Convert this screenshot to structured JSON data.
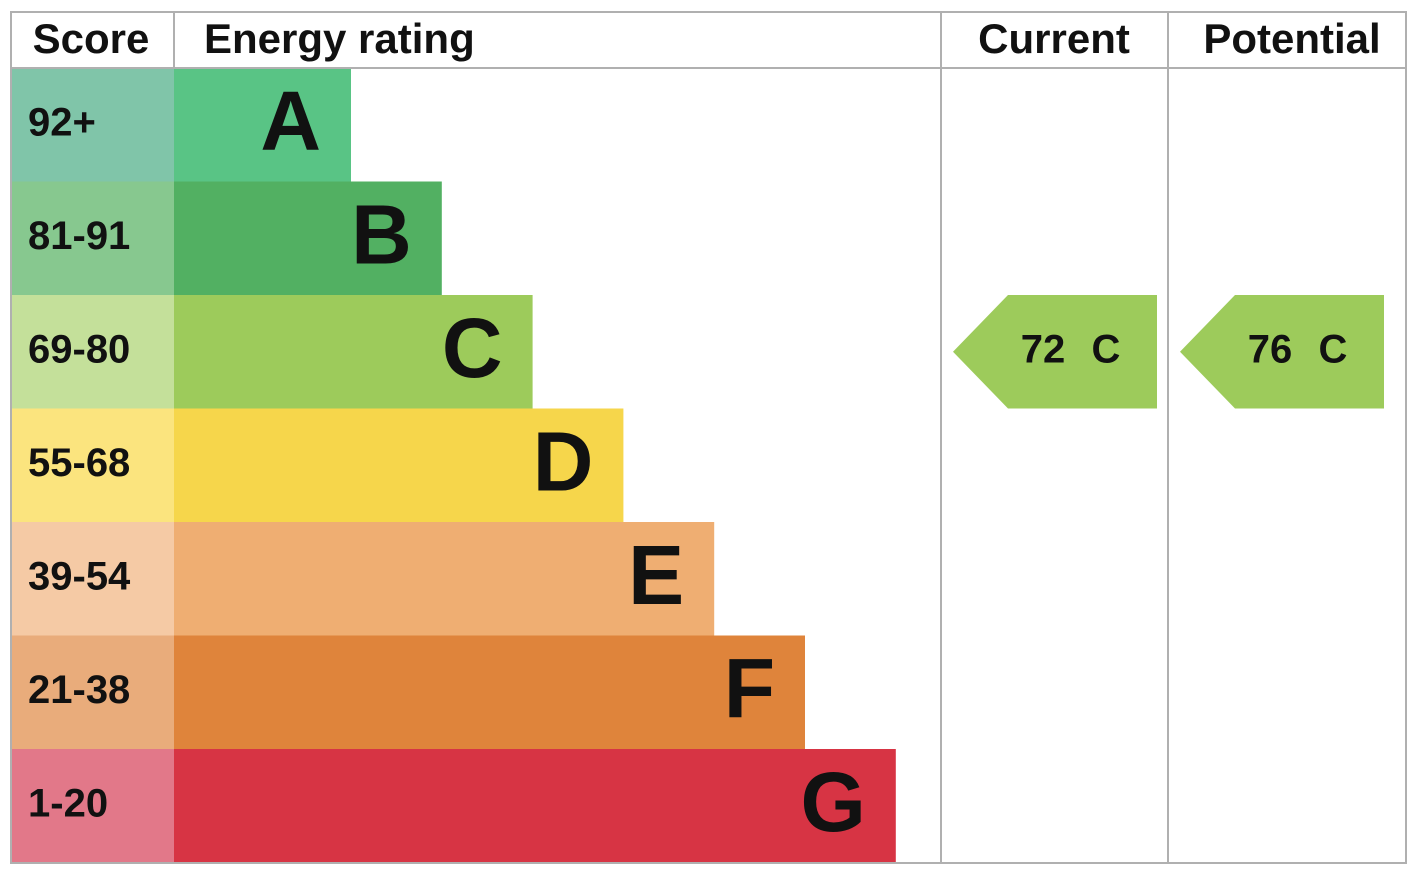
{
  "header": {
    "score": "Score",
    "energy_rating": "Energy rating",
    "current": "Current",
    "potential": "Potential"
  },
  "rows": [
    {
      "score": "92+",
      "rating": "A",
      "color": "#59c485",
      "score_color": "#80c5a9"
    },
    {
      "score": "81-91",
      "rating": "B",
      "color": "#52b062",
      "score_color": "#87c88f"
    },
    {
      "score": "69-80",
      "rating": "C",
      "color": "#9dcb5b",
      "score_color": "#c4e09a"
    },
    {
      "score": "55-68",
      "rating": "D",
      "color": "#f6d64b",
      "score_color": "#fbe47e"
    },
    {
      "score": "39-54",
      "rating": "E",
      "color": "#efae72",
      "score_color": "#f5caa5"
    },
    {
      "score": "21-38",
      "rating": "F",
      "color": "#df843b",
      "score_color": "#e9ac7b"
    },
    {
      "score": "1-20",
      "rating": "G",
      "color": "#d73444",
      "score_color": "#e27889"
    }
  ],
  "current": {
    "score": 72,
    "rating": "C",
    "color": "#9dcb5b"
  },
  "potential": {
    "score": 76,
    "rating": "C",
    "color": "#9dcb5b"
  }
}
